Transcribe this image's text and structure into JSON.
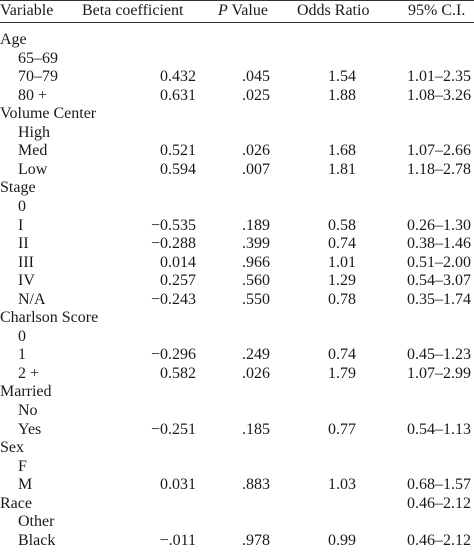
{
  "header": {
    "variable": "Variable",
    "beta": "Beta coefficient",
    "p_letter": "P",
    "p_rest": " Value",
    "odds": "Odds Ratio",
    "ci": "95% C.I."
  },
  "rows": [
    {
      "label": "Age",
      "group": true,
      "beta": "",
      "p": "",
      "or": "",
      "ci": ""
    },
    {
      "label": "65–69",
      "group": false,
      "beta": "",
      "p": "",
      "or": "",
      "ci": ""
    },
    {
      "label": "70–79",
      "group": false,
      "beta": "0.432",
      "p": ".045",
      "or": "1.54",
      "ci": "1.01–2.35"
    },
    {
      "label": "80 +",
      "group": false,
      "beta": "0.631",
      "p": ".025",
      "or": "1.88",
      "ci": "1.08–3.26"
    },
    {
      "label": "Volume Center",
      "group": true,
      "beta": "",
      "p": "",
      "or": "",
      "ci": ""
    },
    {
      "label": "High",
      "group": false,
      "beta": "",
      "p": "",
      "or": "",
      "ci": ""
    },
    {
      "label": "Med",
      "group": false,
      "beta": "0.521",
      "p": ".026",
      "or": "1.68",
      "ci": "1.07–2.66"
    },
    {
      "label": "Low",
      "group": false,
      "beta": "0.594",
      "p": ".007",
      "or": "1.81",
      "ci": "1.18–2.78"
    },
    {
      "label": "Stage",
      "group": true,
      "beta": "",
      "p": "",
      "or": "",
      "ci": ""
    },
    {
      "label": "0",
      "group": false,
      "beta": "",
      "p": "",
      "or": "",
      "ci": ""
    },
    {
      "label": "I",
      "group": false,
      "beta": "−0.535",
      "p": ".189",
      "or": "0.58",
      "ci": "0.26–1.30"
    },
    {
      "label": "II",
      "group": false,
      "beta": "−0.288",
      "p": ".399",
      "or": "0.74",
      "ci": "0.38–1.46"
    },
    {
      "label": "III",
      "group": false,
      "beta": "0.014",
      "p": ".966",
      "or": "1.01",
      "ci": "0.51–2.00"
    },
    {
      "label": "IV",
      "group": false,
      "beta": "0.257",
      "p": ".560",
      "or": "1.29",
      "ci": "0.54–3.07"
    },
    {
      "label": "N/A",
      "group": false,
      "beta": "−0.243",
      "p": ".550",
      "or": "0.78",
      "ci": "0.35–1.74"
    },
    {
      "label": "Charlson Score",
      "group": true,
      "beta": "",
      "p": "",
      "or": "",
      "ci": ""
    },
    {
      "label": "0",
      "group": false,
      "beta": "",
      "p": "",
      "or": "",
      "ci": ""
    },
    {
      "label": "1",
      "group": false,
      "beta": "−0.296",
      "p": ".249",
      "or": "0.74",
      "ci": "0.45–1.23"
    },
    {
      "label": "2 +",
      "group": false,
      "beta": "0.582",
      "p": ".026",
      "or": "1.79",
      "ci": "1.07–2.99"
    },
    {
      "label": "Married",
      "group": true,
      "beta": "",
      "p": "",
      "or": "",
      "ci": ""
    },
    {
      "label": "No",
      "group": false,
      "beta": "",
      "p": "",
      "or": "",
      "ci": ""
    },
    {
      "label": "Yes",
      "group": false,
      "beta": "−0.251",
      "p": ".185",
      "or": "0.77",
      "ci": "0.54–1.13"
    },
    {
      "label": "Sex",
      "group": true,
      "beta": "",
      "p": "",
      "or": "",
      "ci": ""
    },
    {
      "label": "F",
      "group": false,
      "beta": "",
      "p": "",
      "or": "",
      "ci": ""
    },
    {
      "label": "M",
      "group": false,
      "beta": "0.031",
      "p": ".883",
      "or": "1.03",
      "ci": "0.68–1.57"
    },
    {
      "label": "Race",
      "group": true,
      "beta": "",
      "p": "",
      "or": "",
      "ci": "0.46–2.12"
    },
    {
      "label": "Other",
      "group": false,
      "beta": "",
      "p": "",
      "or": "",
      "ci": ""
    },
    {
      "label": "Black",
      "group": false,
      "beta": "−.011",
      "p": ".978",
      "or": "0.99",
      "ci": "0.46–2.12"
    }
  ]
}
